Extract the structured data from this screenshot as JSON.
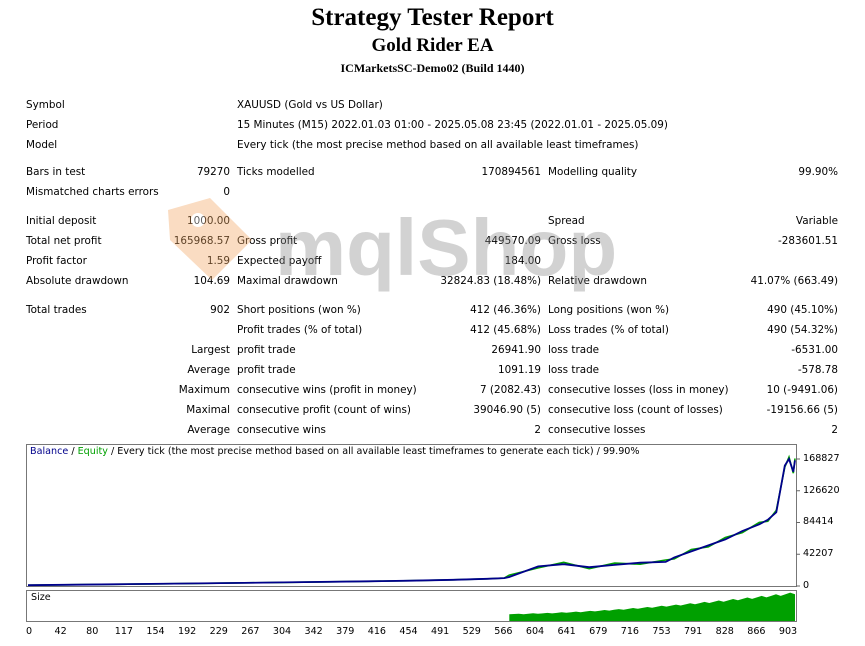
{
  "header": {
    "title": "Strategy Tester Report",
    "subtitle": "Gold Rider EA",
    "server": "ICMarketsSC-Demo02 (Build 1440)"
  },
  "info": {
    "symbol_label": "Symbol",
    "symbol_value": "XAUUSD (Gold vs US Dollar)",
    "period_label": "Period",
    "period_value": "15 Minutes (M15) 2022.01.03 01:00 - 2025.05.08 23:45 (2022.01.01 - 2025.05.09)",
    "model_label": "Model",
    "model_value": "Every tick (the most precise method based on all available least timeframes)"
  },
  "stats": {
    "bars_label": "Bars in test",
    "bars_value": "79270",
    "ticks_label": "Ticks modelled",
    "ticks_value": "170894561",
    "quality_label": "Modelling quality",
    "quality_value": "99.90%",
    "mismatch_label": "Mismatched charts errors",
    "mismatch_value": "0",
    "deposit_label": "Initial deposit",
    "deposit_value": "1000.00",
    "spread_label": "Spread",
    "spread_value": "Variable",
    "netprofit_label": "Total net profit",
    "netprofit_value": "165968.57",
    "grossprofit_label": "Gross profit",
    "grossprofit_value": "449570.09",
    "grossloss_label": "Gross loss",
    "grossloss_value": "-283601.51",
    "pf_label": "Profit factor",
    "pf_value": "1.59",
    "ep_label": "Expected payoff",
    "ep_value": "184.00",
    "absdd_label": "Absolute drawdown",
    "absdd_value": "104.69",
    "maxdd_label": "Maximal drawdown",
    "maxdd_value": "32824.83 (18.48%)",
    "reldd_label": "Relative drawdown",
    "reldd_value": "41.07% (663.49)",
    "trades_label": "Total trades",
    "trades_value": "902",
    "short_label": "Short positions (won %)",
    "short_value": "412 (46.36%)",
    "long_label": "Long positions (won %)",
    "long_value": "490 (45.10%)",
    "profittr_label": "Profit trades (% of total)",
    "profittr_value": "412 (45.68%)",
    "losstr_label": "Loss trades (% of total)",
    "losstr_value": "490 (54.32%)",
    "largest_label": "Largest",
    "largest_profit_label": "profit trade",
    "largest_profit_value": "26941.90",
    "largest_loss_label": "loss trade",
    "largest_loss_value": "-6531.00",
    "average_label": "Average",
    "avg_profit_label": "profit trade",
    "avg_profit_value": "1091.19",
    "avg_loss_label": "loss trade",
    "avg_loss_value": "-578.78",
    "maximum_label": "Maximum",
    "max_wins_label": "consecutive wins (profit in money)",
    "max_wins_value": "7 (2082.43)",
    "max_losses_label": "consecutive losses (loss in money)",
    "max_losses_value": "10 (-9491.06)",
    "maximal_label": "Maximal",
    "maximal_profit_label": "consecutive profit (count of wins)",
    "maximal_profit_value": "39046.90 (5)",
    "maximal_loss_label": "consecutive loss (count of losses)",
    "maximal_loss_value": "-19156.66 (5)",
    "average2_label": "Average",
    "avg_wins_label": "consecutive wins",
    "avg_wins_value": "2",
    "avg_losses_label": "consecutive losses",
    "avg_losses_value": "2"
  },
  "watermark": {
    "text": "mqlShop"
  },
  "chart": {
    "legend_balance": "Balance",
    "legend_sep1": " / ",
    "legend_equity": "Equity",
    "legend_rest": " / Every tick (the most precise method based on all available least timeframes to generate each tick) / 99.90%",
    "size_label": "Size",
    "balance_color": "#00008b",
    "equity_color": "#00a000"
  },
  "chart_data": {
    "type": "line",
    "title": "",
    "xlabel": "",
    "ylabel": "",
    "ylim": [
      0,
      168827
    ],
    "xlim": [
      0,
      902
    ],
    "y_ticks": [
      "168827",
      "126620",
      "84414",
      "42207",
      "0"
    ],
    "x_ticks": [
      "0",
      "42",
      "80",
      "117",
      "154",
      "192",
      "229",
      "267",
      "304",
      "342",
      "379",
      "416",
      "454",
      "491",
      "529",
      "566",
      "604",
      "641",
      "679",
      "716",
      "753",
      "791",
      "828",
      "866",
      "903"
    ],
    "series": [
      {
        "name": "Balance",
        "x": [
          0,
          100,
          200,
          300,
          400,
          450,
          500,
          540,
          560,
          566,
          600,
          630,
          660,
          690,
          720,
          750,
          760,
          780,
          800,
          820,
          840,
          860,
          870,
          880,
          890,
          895,
          900,
          902
        ],
        "y": [
          1000,
          2200,
          3500,
          4800,
          6200,
          7000,
          8200,
          9600,
          10500,
          12000,
          26000,
          29000,
          25000,
          28000,
          31000,
          32000,
          38000,
          46000,
          54000,
          62000,
          73000,
          82000,
          88000,
          98000,
          160000,
          168827,
          152000,
          166969
        ]
      }
    ],
    "size_bars": {
      "start": 566,
      "end": 902,
      "start_level": 0.25,
      "end_level": 1.0
    }
  }
}
